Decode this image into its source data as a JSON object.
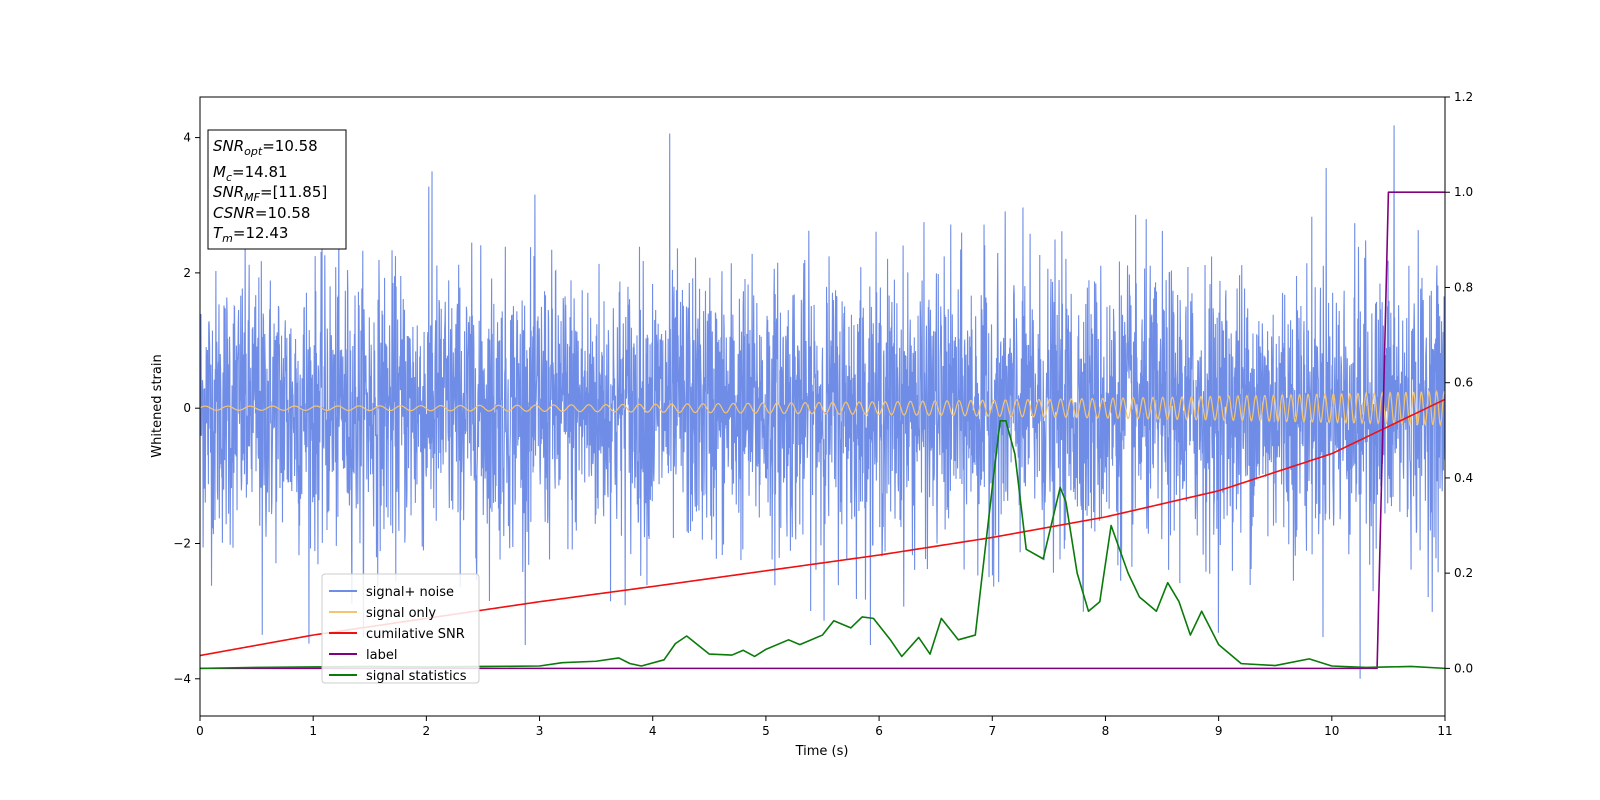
{
  "chart_data": {
    "type": "line",
    "xlabel": "Time (s)",
    "ylabel": "Whitened strain",
    "xlim": [
      0,
      11
    ],
    "ylim": [
      -4.55,
      4.6
    ],
    "y2lim": [
      -0.1,
      1.2
    ],
    "x_ticks": [
      "0",
      "1",
      "2",
      "3",
      "4",
      "5",
      "6",
      "7",
      "8",
      "9",
      "10",
      "11"
    ],
    "y_ticks": [
      "4",
      "2",
      "0",
      "−2",
      "−4"
    ],
    "y2_ticks": [
      "1.2",
      "1.0",
      "0.8",
      "0.6",
      "0.4",
      "0.2",
      "0.0"
    ],
    "info_box": [
      {
        "base": "SNR",
        "sub": "opt",
        "value": "=10.58"
      },
      {
        "base": "M",
        "sub": "c",
        "value": "=14.81"
      },
      {
        "base": "SNR",
        "sub": "MF",
        "value": "=[11.85]"
      },
      {
        "base": "CSNR",
        "sub": "",
        "value": "=10.58"
      },
      {
        "base": "T",
        "sub": "m",
        "value": "=12.43"
      }
    ],
    "legend_position": "lower-left",
    "colors": {
      "noise": "#6f8de6",
      "signal": "#f5c472",
      "csnr": "#ee1111",
      "label": "#800080",
      "stats": "#0a7a0a"
    },
    "series": [
      {
        "name": "signal+ noise",
        "axis": "left",
        "description_values": {
          "std": 1.0,
          "max": 4.2,
          "min": -4.0
        },
        "peaks": [
          [
            4.15,
            4.06
          ],
          [
            10.55,
            4.18
          ],
          [
            2.05,
            3.5
          ],
          [
            9.95,
            3.55
          ],
          [
            0.55,
            -3.35
          ],
          [
            10.25,
            -4.0
          ]
        ]
      },
      {
        "name": "signal only",
        "axis": "left",
        "amplitude_start": 0.03,
        "amplitude_end": 0.25
      },
      {
        "name": "cumilative SNR",
        "axis": "right",
        "x": [
          0,
          1,
          2,
          3,
          4,
          5,
          6,
          7,
          8,
          9,
          10,
          10.5,
          11
        ],
        "y": [
          0.027,
          0.07,
          0.105,
          0.14,
          0.172,
          0.205,
          0.238,
          0.275,
          0.318,
          0.373,
          0.451,
          0.508,
          0.565
        ]
      },
      {
        "name": "label",
        "axis": "right",
        "x": [
          0,
          10.4,
          10.5,
          11
        ],
        "y": [
          0.0,
          0.0,
          1.0,
          1.0
        ]
      },
      {
        "name": "signal statistics",
        "axis": "right",
        "x": [
          0,
          0.5,
          1,
          1.5,
          2,
          2.5,
          3,
          3.2,
          3.5,
          3.7,
          3.8,
          3.9,
          4.1,
          4.2,
          4.3,
          4.5,
          4.7,
          4.8,
          4.9,
          5.0,
          5.2,
          5.3,
          5.5,
          5.6,
          5.75,
          5.85,
          5.95,
          6.1,
          6.2,
          6.35,
          6.45,
          6.55,
          6.7,
          6.85,
          7.0,
          7.07,
          7.12,
          7.2,
          7.3,
          7.45,
          7.6,
          7.65,
          7.75,
          7.85,
          7.95,
          8.05,
          8.2,
          8.3,
          8.45,
          8.55,
          8.65,
          8.75,
          8.85,
          9.0,
          9.2,
          9.5,
          9.8,
          10.0,
          10.3,
          10.5,
          10.7,
          11.0
        ],
        "y": [
          0.0,
          0.002,
          0.003,
          0.004,
          0.003,
          0.004,
          0.005,
          0.012,
          0.015,
          0.022,
          0.01,
          0.005,
          0.018,
          0.052,
          0.068,
          0.03,
          0.028,
          0.038,
          0.025,
          0.04,
          0.06,
          0.05,
          0.07,
          0.1,
          0.085,
          0.108,
          0.105,
          0.06,
          0.025,
          0.065,
          0.03,
          0.105,
          0.06,
          0.07,
          0.38,
          0.52,
          0.52,
          0.45,
          0.25,
          0.23,
          0.38,
          0.35,
          0.2,
          0.12,
          0.14,
          0.3,
          0.2,
          0.15,
          0.12,
          0.18,
          0.14,
          0.07,
          0.12,
          0.05,
          0.01,
          0.006,
          0.02,
          0.005,
          0.002,
          0.003,
          0.004,
          0.0
        ]
      }
    ]
  }
}
